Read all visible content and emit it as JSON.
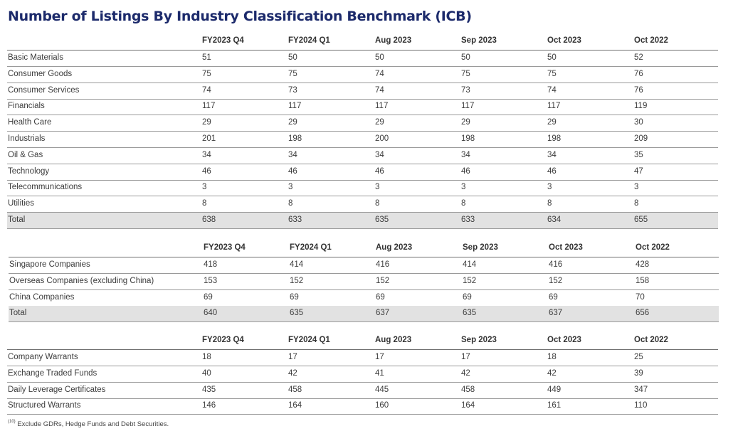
{
  "title": "Number of Listings By Industry Classification Benchmark (ICB)",
  "table1": {
    "headers": [
      "FY2023 Q4",
      "FY2024 Q1",
      "Aug 2023",
      "Sep 2023",
      "Oct 2023",
      "Oct 2022"
    ],
    "rows": [
      {
        "label": "Basic Materials",
        "values": [
          "51",
          "50",
          "50",
          "50",
          "50",
          "52"
        ]
      },
      {
        "label": "Consumer Goods",
        "values": [
          "75",
          "75",
          "74",
          "75",
          "75",
          "76"
        ]
      },
      {
        "label": "Consumer Services",
        "values": [
          "74",
          "73",
          "74",
          "73",
          "74",
          "76"
        ]
      },
      {
        "label": "Financials",
        "values": [
          "117",
          "117",
          "117",
          "117",
          "117",
          "119"
        ]
      },
      {
        "label": "Health Care",
        "values": [
          "29",
          "29",
          "29",
          "29",
          "29",
          "30"
        ]
      },
      {
        "label": "Industrials",
        "values": [
          "201",
          "198",
          "200",
          "198",
          "198",
          "209"
        ]
      },
      {
        "label": "Oil & Gas",
        "values": [
          "34",
          "34",
          "34",
          "34",
          "34",
          "35"
        ]
      },
      {
        "label": "Technology",
        "values": [
          "46",
          "46",
          "46",
          "46",
          "46",
          "47"
        ]
      },
      {
        "label": "Telecommunications",
        "values": [
          "3",
          "3",
          "3",
          "3",
          "3",
          "3"
        ]
      },
      {
        "label": "Utilities",
        "values": [
          "8",
          "8",
          "8",
          "8",
          "8",
          "8"
        ]
      }
    ],
    "total": {
      "label": "Total",
      "values": [
        "638",
        "633",
        "635",
        "633",
        "634",
        "655"
      ]
    }
  },
  "table2": {
    "headers": [
      "FY2023 Q4",
      "FY2024 Q1",
      "Aug 2023",
      "Sep 2023",
      "Oct 2023",
      "Oct 2022"
    ],
    "rows": [
      {
        "label": "Singapore Companies",
        "values": [
          "418",
          "414",
          "416",
          "414",
          "416",
          "428"
        ]
      },
      {
        "label": "Overseas Companies (excluding China)",
        "values": [
          "153",
          "152",
          "152",
          "152",
          "152",
          "158"
        ]
      },
      {
        "label": "China Companies",
        "values": [
          "69",
          "69",
          "69",
          "69",
          "69",
          "70"
        ]
      }
    ],
    "total": {
      "label": "Total",
      "values": [
        "640",
        "635",
        "637",
        "635",
        "637",
        "656"
      ]
    }
  },
  "table3": {
    "headers": [
      "FY2023 Q4",
      "FY2024 Q1",
      "Aug 2023",
      "Sep 2023",
      "Oct 2023",
      "Oct 2022"
    ],
    "rows": [
      {
        "label": "Company Warrants",
        "values": [
          "18",
          "17",
          "17",
          "17",
          "18",
          "25"
        ]
      },
      {
        "label": "Exchange Traded Funds",
        "values": [
          "40",
          "42",
          "41",
          "42",
          "42",
          "39"
        ]
      },
      {
        "label": "Daily Leverage Certificates",
        "values": [
          "435",
          "458",
          "445",
          "458",
          "449",
          "347"
        ]
      },
      {
        "label": "Structured Warrants",
        "values": [
          "146",
          "164",
          "160",
          "164",
          "161",
          "110"
        ]
      }
    ]
  },
  "footnote": {
    "marker": "(10)",
    "text": "Exclude GDRs, Hedge Funds and Debt Securities."
  }
}
